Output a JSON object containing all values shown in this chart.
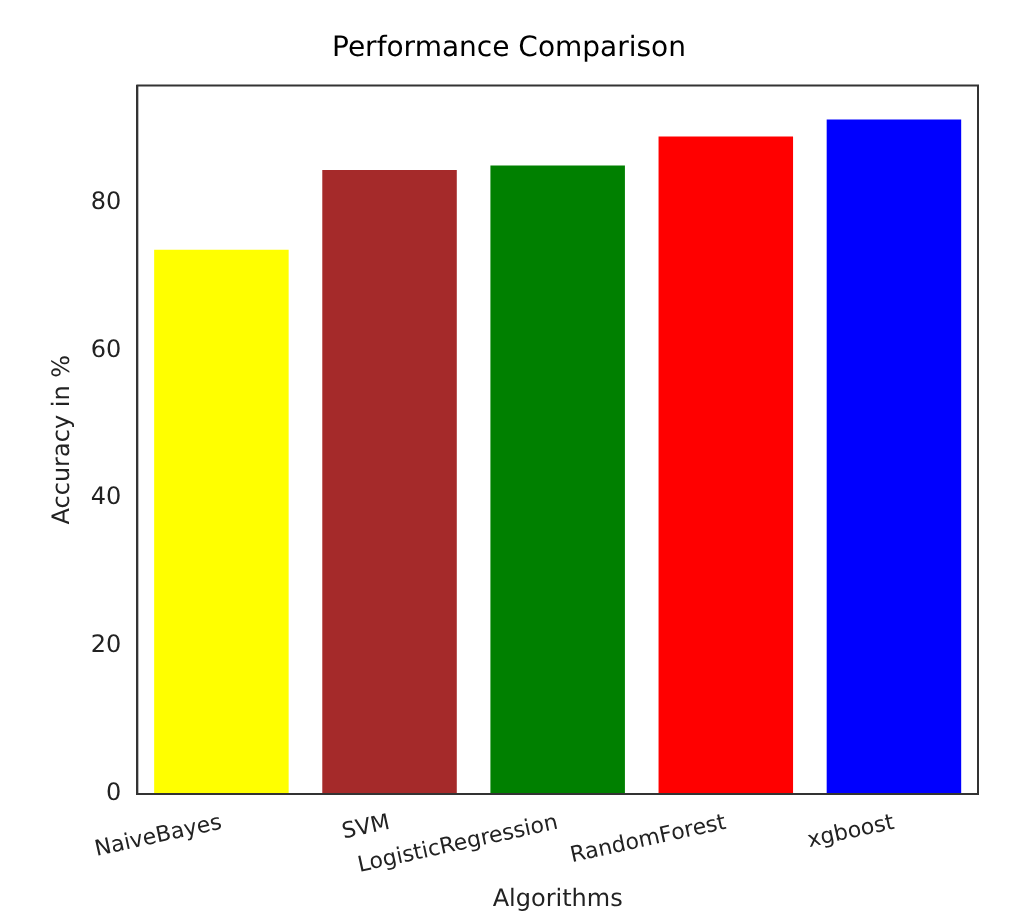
{
  "chart_data": {
    "type": "bar",
    "title": "Performance Comparison",
    "xlabel": "Algorithms",
    "ylabel": "Accuracy in %",
    "categories": [
      "NaiveBayes",
      "SVM",
      "LogisticRegression",
      "RandomForest",
      "xgboost"
    ],
    "values": [
      73.6,
      84.4,
      85.0,
      88.9,
      91.2
    ],
    "colors": [
      "#ffff00",
      "#a52a2a",
      "#008000",
      "#ff0000",
      "#0000ff"
    ],
    "ylim": [
      0,
      95.8
    ],
    "yticks": [
      0,
      20,
      40,
      60,
      80
    ],
    "grid": false,
    "legend": false
  }
}
